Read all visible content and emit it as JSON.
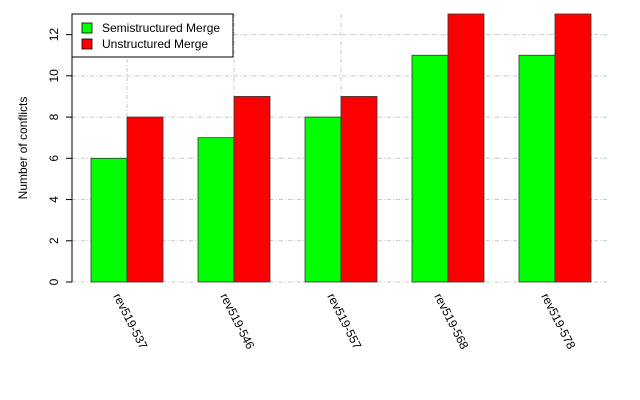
{
  "chart_data": {
    "type": "bar",
    "categories": [
      "rev519-537",
      "rev519-546",
      "rev519-557",
      "rev519-568",
      "rev519-578"
    ],
    "series": [
      {
        "name": "Semistructured Merge",
        "values": [
          6,
          7,
          8,
          11,
          11
        ],
        "color": "#00ff00"
      },
      {
        "name": "Unstructured Merge",
        "values": [
          8,
          9,
          9,
          13,
          13
        ],
        "color": "#ff0000"
      }
    ],
    "title": "",
    "xlabel": "",
    "ylabel": "Number of conflicts",
    "ylim": [
      0,
      13
    ],
    "yticks": [
      0,
      2,
      4,
      6,
      8,
      10,
      12
    ],
    "grid": true,
    "legend_position": "top-left"
  }
}
